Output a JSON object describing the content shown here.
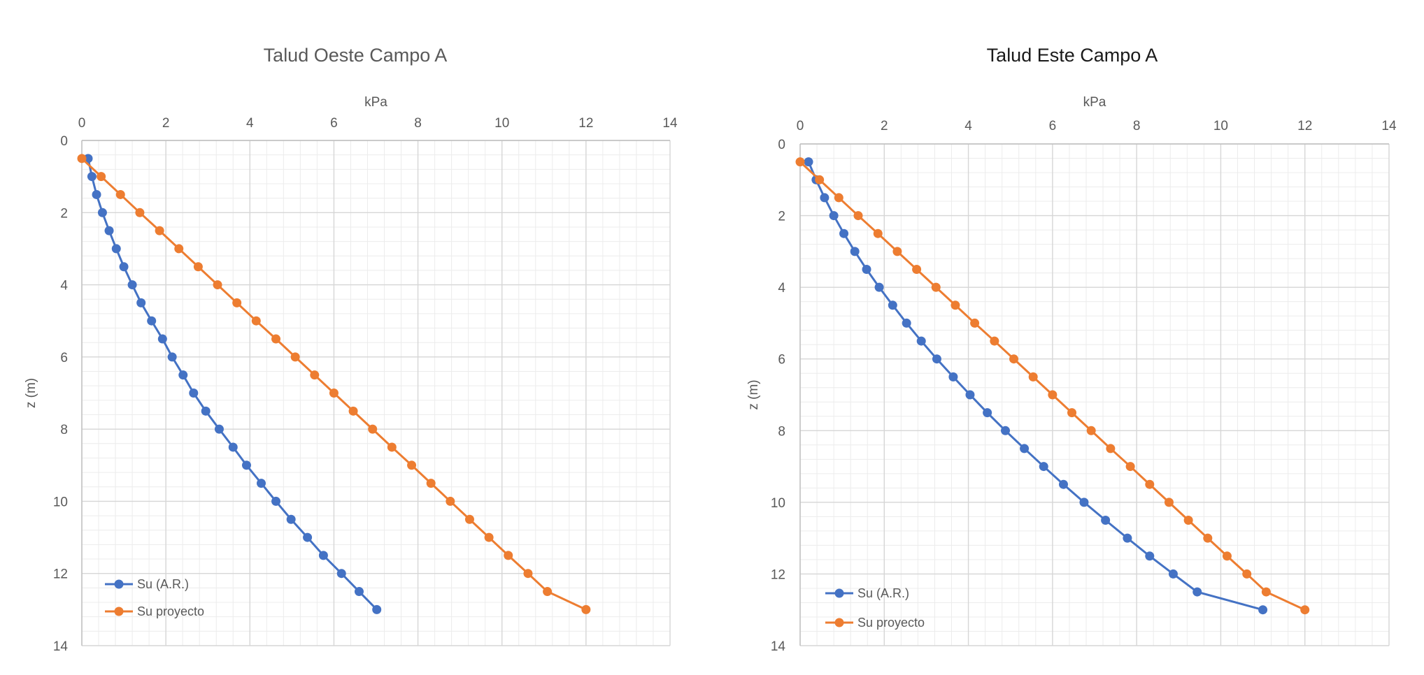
{
  "chart_data": [
    {
      "type": "line",
      "title": "Talud Oeste Campo A",
      "title_color": "#595959",
      "xlabel": "kPa",
      "ylabel": "z (m)",
      "xlim": [
        0,
        14
      ],
      "ylim": [
        14,
        0
      ],
      "x_ticks": [
        "0",
        "2",
        "4",
        "6",
        "8",
        "10",
        "12",
        "14"
      ],
      "y_ticks": [
        "0",
        "2",
        "4",
        "6",
        "8",
        "10",
        "12",
        "14"
      ],
      "x_axis_position": "top",
      "y_axis_inverted": true,
      "grid": true,
      "legend_position": "bottom-left",
      "series": [
        {
          "name": "Su (A.R.)",
          "color": "#4472C4",
          "points": [
            [
              0.15,
              0.5
            ],
            [
              0.24,
              1.0
            ],
            [
              0.35,
              1.5
            ],
            [
              0.49,
              2.0
            ],
            [
              0.65,
              2.5
            ],
            [
              0.82,
              3.0
            ],
            [
              1.0,
              3.5
            ],
            [
              1.2,
              4.0
            ],
            [
              1.41,
              4.5
            ],
            [
              1.66,
              5.0
            ],
            [
              1.92,
              5.5
            ],
            [
              2.15,
              6.0
            ],
            [
              2.41,
              6.5
            ],
            [
              2.66,
              7.0
            ],
            [
              2.95,
              7.5
            ],
            [
              3.27,
              8.0
            ],
            [
              3.6,
              8.5
            ],
            [
              3.92,
              9.0
            ],
            [
              4.27,
              9.5
            ],
            [
              4.62,
              10.0
            ],
            [
              4.98,
              10.5
            ],
            [
              5.37,
              11.0
            ],
            [
              5.75,
              11.5
            ],
            [
              6.18,
              12.0
            ],
            [
              6.6,
              12.5
            ],
            [
              7.02,
              13.0
            ]
          ]
        },
        {
          "name": "Su proyecto",
          "color": "#ED7D31",
          "points": [
            [
              0.0,
              0.5
            ],
            [
              0.46,
              1.0
            ],
            [
              0.92,
              1.5
            ],
            [
              1.38,
              2.0
            ],
            [
              1.85,
              2.5
            ],
            [
              2.31,
              3.0
            ],
            [
              2.77,
              3.5
            ],
            [
              3.23,
              4.0
            ],
            [
              3.69,
              4.5
            ],
            [
              4.15,
              5.0
            ],
            [
              4.62,
              5.5
            ],
            [
              5.08,
              6.0
            ],
            [
              5.54,
              6.5
            ],
            [
              6.0,
              7.0
            ],
            [
              6.46,
              7.5
            ],
            [
              6.92,
              8.0
            ],
            [
              7.38,
              8.5
            ],
            [
              7.85,
              9.0
            ],
            [
              8.31,
              9.5
            ],
            [
              8.77,
              10.0
            ],
            [
              9.23,
              10.5
            ],
            [
              9.69,
              11.0
            ],
            [
              10.15,
              11.5
            ],
            [
              10.62,
              12.0
            ],
            [
              11.08,
              12.5
            ],
            [
              12.0,
              13.0
            ]
          ]
        }
      ]
    },
    {
      "type": "line",
      "title": "Talud Este Campo A",
      "title_color": "#1a1a1a",
      "xlabel": "kPa",
      "ylabel": "z (m)",
      "xlim": [
        0,
        14
      ],
      "ylim": [
        14,
        0
      ],
      "x_ticks": [
        "0",
        "2",
        "4",
        "6",
        "8",
        "10",
        "12",
        "14"
      ],
      "y_ticks": [
        "0",
        "2",
        "4",
        "6",
        "8",
        "10",
        "12",
        "14"
      ],
      "x_axis_position": "top",
      "y_axis_inverted": true,
      "grid": true,
      "legend_position": "bottom-left",
      "series": [
        {
          "name": "Su (A.R.)",
          "color": "#4472C4",
          "points": [
            [
              0.2,
              0.5
            ],
            [
              0.38,
              1.0
            ],
            [
              0.58,
              1.5
            ],
            [
              0.8,
              2.0
            ],
            [
              1.04,
              2.5
            ],
            [
              1.3,
              3.0
            ],
            [
              1.58,
              3.5
            ],
            [
              1.88,
              4.0
            ],
            [
              2.2,
              4.5
            ],
            [
              2.53,
              5.0
            ],
            [
              2.88,
              5.5
            ],
            [
              3.25,
              6.0
            ],
            [
              3.64,
              6.5
            ],
            [
              4.04,
              7.0
            ],
            [
              4.45,
              7.5
            ],
            [
              4.88,
              8.0
            ],
            [
              5.33,
              8.5
            ],
            [
              5.79,
              9.0
            ],
            [
              6.26,
              9.5
            ],
            [
              6.75,
              10.0
            ],
            [
              7.26,
              10.5
            ],
            [
              7.78,
              11.0
            ],
            [
              8.31,
              11.5
            ],
            [
              8.87,
              12.0
            ],
            [
              9.44,
              12.5
            ],
            [
              11.0,
              13.0
            ]
          ]
        },
        {
          "name": "Su proyecto",
          "color": "#ED7D31",
          "points": [
            [
              0.0,
              0.5
            ],
            [
              0.46,
              1.0
            ],
            [
              0.92,
              1.5
            ],
            [
              1.38,
              2.0
            ],
            [
              1.85,
              2.5
            ],
            [
              2.31,
              3.0
            ],
            [
              2.77,
              3.5
            ],
            [
              3.23,
              4.0
            ],
            [
              3.69,
              4.5
            ],
            [
              4.15,
              5.0
            ],
            [
              4.62,
              5.5
            ],
            [
              5.08,
              6.0
            ],
            [
              5.54,
              6.5
            ],
            [
              6.0,
              7.0
            ],
            [
              6.46,
              7.5
            ],
            [
              6.92,
              8.0
            ],
            [
              7.38,
              8.5
            ],
            [
              7.85,
              9.0
            ],
            [
              8.31,
              9.5
            ],
            [
              8.77,
              10.0
            ],
            [
              9.23,
              10.5
            ],
            [
              9.69,
              11.0
            ],
            [
              10.15,
              11.5
            ],
            [
              10.62,
              12.0
            ],
            [
              11.08,
              12.5
            ],
            [
              12.0,
              13.0
            ]
          ]
        }
      ]
    }
  ]
}
